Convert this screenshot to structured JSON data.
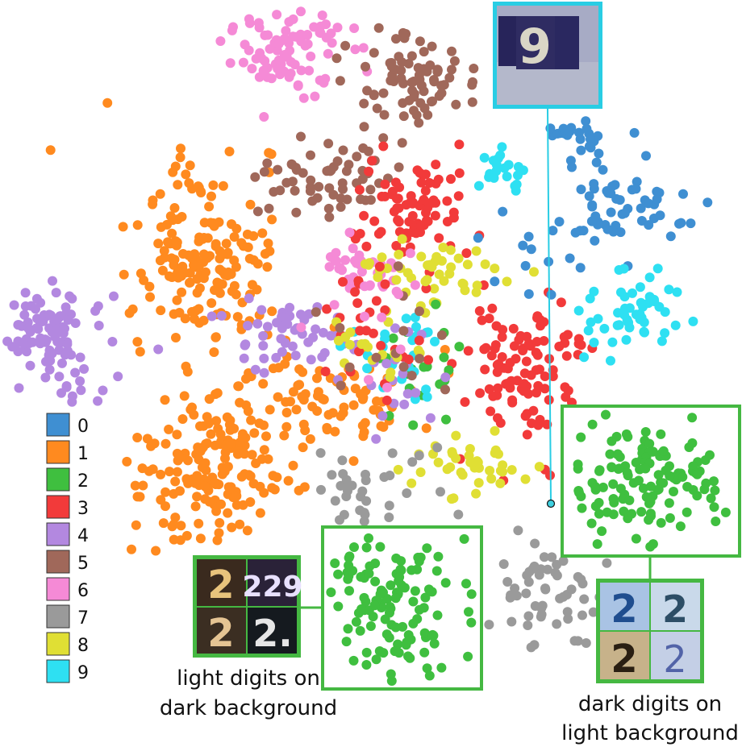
{
  "chart_data": {
    "type": "scatter",
    "title": "",
    "xlabel": "",
    "ylabel": "",
    "grid": false,
    "legend_position": "left",
    "series": [
      {
        "name": "0",
        "color": "#3f8fd2"
      },
      {
        "name": "1",
        "color": "#ff8a1f"
      },
      {
        "name": "2",
        "color": "#3fbf3f"
      },
      {
        "name": "3",
        "color": "#f23a3a"
      },
      {
        "name": "4",
        "color": "#b388e0"
      },
      {
        "name": "5",
        "color": "#a0685a"
      },
      {
        "name": "6",
        "color": "#f58ad6"
      },
      {
        "name": "7",
        "color": "#9a9a9a"
      },
      {
        "name": "8",
        "color": "#e0df34"
      },
      {
        "name": "9",
        "color": "#2ee0f2"
      }
    ]
  },
  "annotations": {
    "left_caption": [
      "light digits on",
      "dark background"
    ],
    "right_caption": [
      "dark digits on",
      "light background"
    ],
    "zoom_color": "#45b842",
    "highlight_color": "#29cde4"
  }
}
